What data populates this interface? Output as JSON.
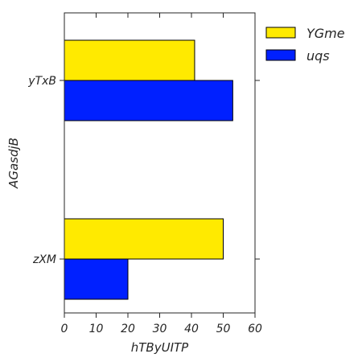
{
  "chart_data": {
    "type": "bar",
    "orientation": "horizontal",
    "categories": [
      "yTxB",
      "zXM"
    ],
    "series": [
      {
        "name": "YGme",
        "values": [
          41,
          50
        ],
        "color": "#ffea00"
      },
      {
        "name": "uqs",
        "values": [
          53,
          20
        ],
        "color": "#0020ff"
      }
    ],
    "title": "",
    "xlabel": "hTByUITP",
    "ylabel": "AGasdjB",
    "xlim": [
      0,
      60
    ],
    "xticks": [
      0,
      10,
      20,
      30,
      40,
      50,
      60
    ],
    "grid": false,
    "legend_position": "outside top-right"
  }
}
